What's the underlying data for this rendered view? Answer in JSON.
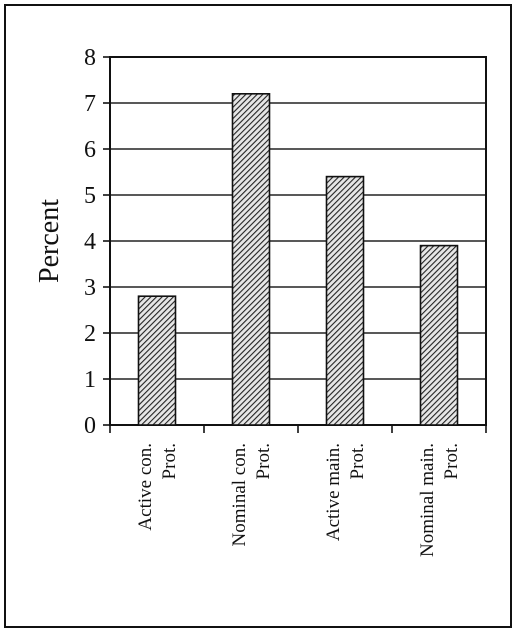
{
  "chart_data": {
    "type": "bar",
    "title": "",
    "xlabel": "",
    "ylabel": "Percent",
    "ylim": [
      0,
      8
    ],
    "yticks": [
      0,
      1,
      2,
      3,
      4,
      5,
      6,
      7,
      8
    ],
    "grid": true,
    "legend": "none",
    "categories": [
      [
        "Active con.",
        "Prot."
      ],
      [
        "Nominal con.",
        "Prot."
      ],
      [
        "Active main.",
        "Prot."
      ],
      [
        "Nominal main.",
        "Prot."
      ]
    ],
    "values": [
      2.8,
      7.2,
      5.4,
      3.9
    ]
  }
}
